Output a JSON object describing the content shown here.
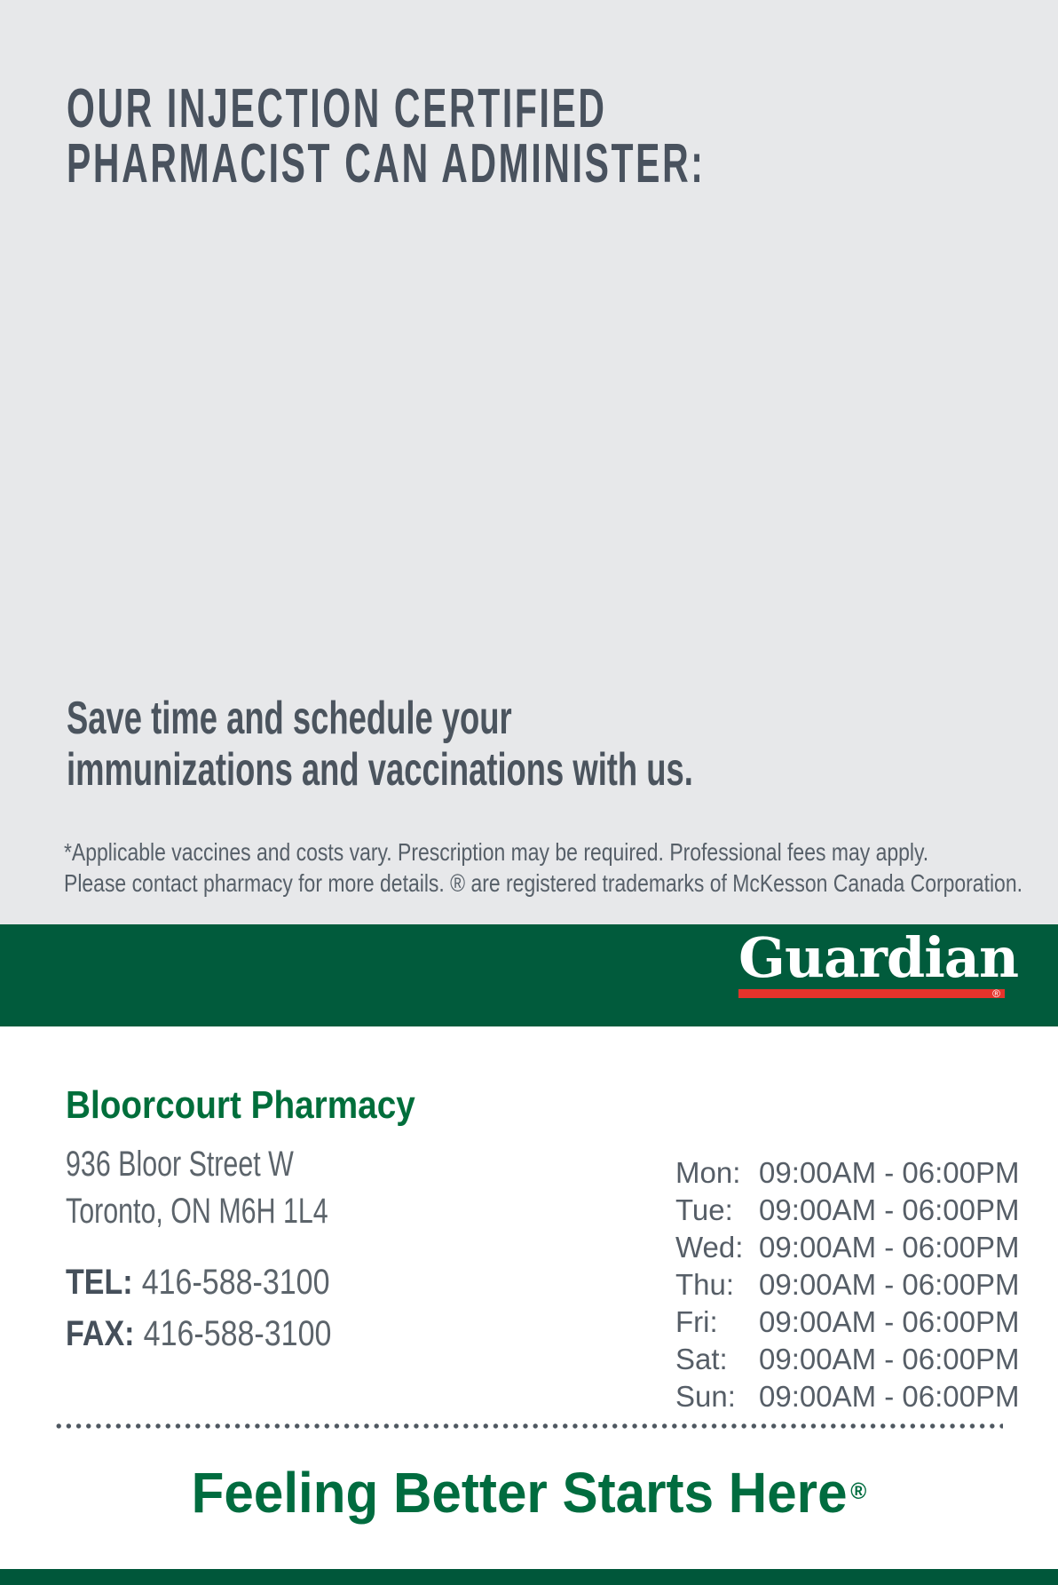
{
  "hero": {
    "heading_line1": "OUR INJECTION CERTIFIED",
    "heading_line2": "PHARMACIST CAN ADMINISTER:",
    "subheading_line1": "Save time and schedule your",
    "subheading_line2": "immunizations and vaccinations with us.",
    "disclaimer_line1": "*Applicable vaccines and costs vary. Prescription may be required. Professional fees may apply.",
    "disclaimer_line2": "Please contact pharmacy for more details. ® are registered trademarks of McKesson Canada Corporation."
  },
  "brand": {
    "logo_text": "Guardian",
    "registered_mark": "®",
    "tagline": "Feeling Better Starts Here"
  },
  "pharmacy": {
    "name": "Bloorcourt Pharmacy",
    "address_line1": "936 Bloor Street W",
    "address_line2": "Toronto, ON M6H 1L4",
    "tel_label": "TEL:",
    "tel_value": "416-588-3100",
    "fax_label": "FAX:",
    "fax_value": "416-588-3100"
  },
  "hours": {
    "rows": [
      {
        "day": "Mon:",
        "time": "09:00AM - 06:00PM"
      },
      {
        "day": "Tue:",
        "time": "09:00AM - 06:00PM"
      },
      {
        "day": "Wed:",
        "time": "09:00AM - 06:00PM"
      },
      {
        "day": "Thu:",
        "time": "09:00AM - 06:00PM"
      },
      {
        "day": "Fri:",
        "time": "09:00AM - 06:00PM"
      },
      {
        "day": "Sat:",
        "time": "09:00AM - 06:00PM"
      },
      {
        "day": "Sun:",
        "time": "09:00AM - 06:00PM"
      }
    ]
  },
  "colors": {
    "background_gray": "#e7e8ea",
    "heading_slate": "#49525e",
    "body_gray": "#5c646b",
    "brand_green": "#015b3c",
    "brand_red": "#e6332b",
    "pharmacy_name_green": "#006e3b",
    "tagline_green": "#006c3f",
    "footer_green": "#00573a"
  }
}
